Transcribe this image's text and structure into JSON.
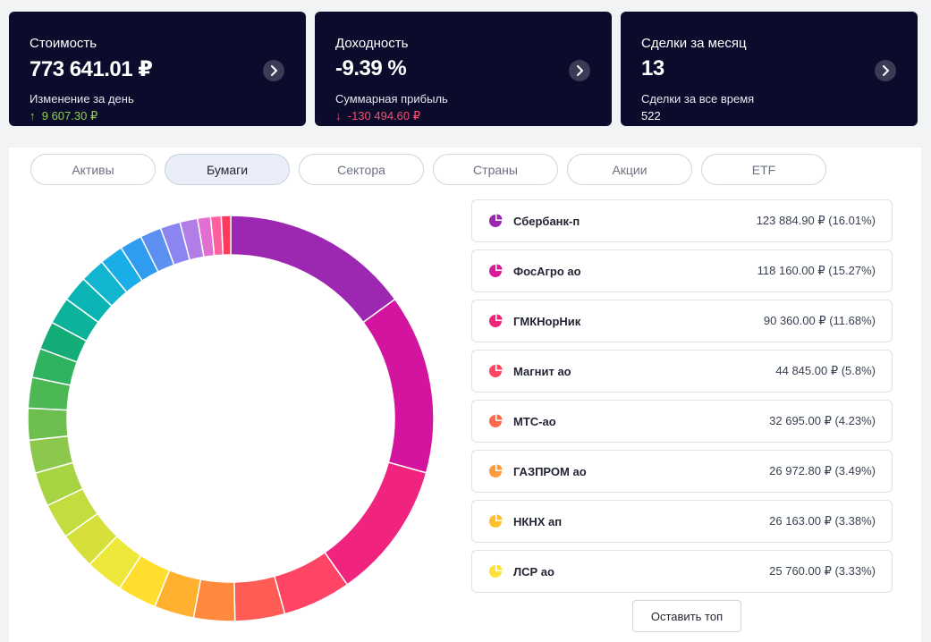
{
  "cards": [
    {
      "title": "Стоимость",
      "value": "773 641.01 ₽",
      "sub_label": "Изменение за день",
      "sub_arrow": "↑",
      "sub_value": "9 607.30 ₽",
      "trend": "up"
    },
    {
      "title": "Доходность",
      "value": "-9.39 %",
      "sub_label": "Суммарная прибыль",
      "sub_arrow": "↓",
      "sub_value": "-130 494.60 ₽",
      "trend": "down"
    },
    {
      "title": "Сделки за месяц",
      "value": "13",
      "sub_label": "Сделки за все время",
      "sub_arrow": "",
      "sub_value": "522",
      "trend": "plain"
    }
  ],
  "tabs": [
    {
      "label": "Активы",
      "active": false
    },
    {
      "label": "Бумаги",
      "active": true
    },
    {
      "label": "Сектора",
      "active": false
    },
    {
      "label": "Страны",
      "active": false
    },
    {
      "label": "Акции",
      "active": false
    },
    {
      "label": "ETF",
      "active": false
    }
  ],
  "securities": [
    {
      "name": "Сбербанк-п",
      "amount": "123 884.90 ₽ (16.01%)",
      "color": "#9c27b0"
    },
    {
      "name": "ФосАгро ао",
      "amount": "118 160.00 ₽ (15.27%)",
      "color": "#d81b9a"
    },
    {
      "name": "ГМКНорНик",
      "amount": "90 360.00 ₽ (11.68%)",
      "color": "#f0237a"
    },
    {
      "name": "Магнит ао",
      "amount": "44 845.00 ₽ (5.8%)",
      "color": "#ff4560"
    },
    {
      "name": "МТС-ао",
      "amount": "32 695.00 ₽ (4.23%)",
      "color": "#ff6a4d"
    },
    {
      "name": "ГАЗПРОМ ао",
      "amount": "26 972.80 ₽ (3.49%)",
      "color": "#ff9a3c"
    },
    {
      "name": "НКНХ ап",
      "amount": "26 163.00 ₽ (3.38%)",
      "color": "#ffc02e"
    },
    {
      "name": "ЛСР ао",
      "amount": "25 760.00 ₽ (3.33%)",
      "color": "#ffe23a"
    }
  ],
  "keep_top_label": "Оставить топ",
  "donut_segments": [
    {
      "value": 16.01,
      "color": "#9c27b0"
    },
    {
      "value": 15.27,
      "color": "#d2149f"
    },
    {
      "value": 11.68,
      "color": "#f0237f"
    },
    {
      "value": 5.8,
      "color": "#ff4466"
    },
    {
      "value": 4.23,
      "color": "#ff5c55"
    },
    {
      "value": 3.49,
      "color": "#ff8a3d"
    },
    {
      "value": 3.38,
      "color": "#ffb02e"
    },
    {
      "value": 3.33,
      "color": "#ffde2e"
    },
    {
      "value": 3.2,
      "color": "#eee83a"
    },
    {
      "value": 3.1,
      "color": "#d7e03a"
    },
    {
      "value": 3.0,
      "color": "#c5dc3e"
    },
    {
      "value": 2.9,
      "color": "#a6d443"
    },
    {
      "value": 2.8,
      "color": "#8cc84b"
    },
    {
      "value": 2.7,
      "color": "#6cbf4e"
    },
    {
      "value": 2.6,
      "color": "#4cb854"
    },
    {
      "value": 2.5,
      "color": "#2fb35e"
    },
    {
      "value": 2.4,
      "color": "#14ad78"
    },
    {
      "value": 2.3,
      "color": "#0cb39a"
    },
    {
      "value": 2.2,
      "color": "#0bb4b4"
    },
    {
      "value": 2.1,
      "color": "#12b5cf"
    },
    {
      "value": 2.0,
      "color": "#1aaee8"
    },
    {
      "value": 1.9,
      "color": "#2f9cf0"
    },
    {
      "value": 1.8,
      "color": "#5b8ff2"
    },
    {
      "value": 1.7,
      "color": "#8a85f0"
    },
    {
      "value": 1.5,
      "color": "#b07ee6"
    },
    {
      "value": 1.1,
      "color": "#e06fd0"
    },
    {
      "value": 0.9,
      "color": "#ff5fa0"
    },
    {
      "value": 0.8,
      "color": "#ff3b5c"
    }
  ]
}
